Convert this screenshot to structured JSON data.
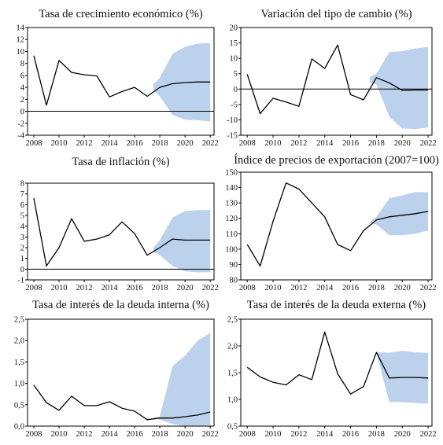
{
  "colors": {
    "line": "#000000",
    "band": "#bcd2ec",
    "frame": "#000000",
    "text": "#111111"
  },
  "chart_data": [
    {
      "type": "line",
      "title": "Tasa de crecimiento económico (%)",
      "xlabel": "",
      "ylabel": "",
      "xlim": [
        2007.5,
        2022.3
      ],
      "ylim": [
        -4,
        14
      ],
      "xticks": [
        "2008",
        "2010",
        "2012",
        "2014",
        "2016",
        "2018",
        "2020",
        "2022"
      ],
      "yticks": [
        "-4",
        "-2",
        "0",
        "2",
        "4",
        "6",
        "8",
        "10",
        "12",
        "14"
      ],
      "zero_line": 0,
      "series": [
        {
          "x": [
            2008,
            2009,
            2010,
            2011,
            2012,
            2013,
            2014,
            2015,
            2016,
            2017,
            2018,
            2019,
            2020,
            2021,
            2022
          ],
          "y": [
            9.3,
            1.0,
            8.5,
            6.5,
            6.1,
            5.9,
            2.4,
            3.3,
            4.0,
            2.5,
            4.0,
            4.6,
            4.8,
            4.9,
            4.9
          ]
        }
      ],
      "band": {
        "x": [
          2017.5,
          2018,
          2019,
          2020,
          2021,
          2022
        ],
        "lower": [
          3.5,
          2.5,
          -0.6,
          -1.4,
          -1.5,
          -1.7
        ],
        "upper": [
          4.5,
          5.6,
          9.6,
          10.8,
          11.3,
          11.4
        ]
      }
    },
    {
      "type": "line",
      "title": "Variación del tipo de cambio (%)",
      "xlabel": "",
      "ylabel": "",
      "xlim": [
        2007.5,
        2022.3
      ],
      "ylim": [
        -15,
        20
      ],
      "xticks": [
        "2008",
        "2010",
        "2012",
        "2014",
        "2016",
        "2018",
        "2020",
        "2022"
      ],
      "yticks": [
        "-15",
        "-10",
        "-5",
        "0",
        "5",
        "10",
        "15",
        "20"
      ],
      "zero_line": 0,
      "series": [
        {
          "x": [
            2008,
            2009,
            2010,
            2011,
            2012,
            2013,
            2014,
            2015,
            2016,
            2017,
            2018,
            2019,
            2020,
            2021,
            2022
          ],
          "y": [
            4.8,
            -8.0,
            -3.0,
            -4.2,
            -5.6,
            9.8,
            6.7,
            14.3,
            -1.8,
            -3.5,
            3.7,
            2.0,
            -0.4,
            -0.3,
            -0.3
          ]
        }
      ],
      "band": {
        "x": [
          2017.5,
          2018,
          2019,
          2020,
          2021,
          2022
        ],
        "lower": [
          2.0,
          1.5,
          -9.0,
          -12.8,
          -13.0,
          -12.5
        ],
        "upper": [
          4.0,
          5.0,
          12.0,
          12.3,
          13.2,
          13.7
        ]
      }
    },
    {
      "type": "line",
      "title": "Tasa de inflación (%)",
      "xlabel": "",
      "ylabel": "",
      "xlim": [
        2007.5,
        2022.3
      ],
      "ylim": [
        -1,
        8
      ],
      "xticks": [
        "2008",
        "2010",
        "2012",
        "2014",
        "2016",
        "2018",
        "2020",
        "2022"
      ],
      "yticks": [
        "-1",
        "0",
        "1",
        "2",
        "3",
        "4",
        "5",
        "6",
        "7",
        "8"
      ],
      "zero_line": 0,
      "series": [
        {
          "x": [
            2008,
            2009,
            2010,
            2011,
            2012,
            2013,
            2014,
            2015,
            2016,
            2017,
            2018,
            2019,
            2020,
            2021,
            2022
          ],
          "y": [
            6.6,
            0.3,
            2.0,
            4.7,
            2.6,
            2.8,
            3.2,
            4.4,
            3.3,
            1.3,
            2.0,
            2.8,
            2.7,
            2.7,
            2.7
          ]
        }
      ],
      "band": {
        "x": [
          2017.5,
          2018,
          2019,
          2020,
          2021,
          2022
        ],
        "lower": [
          1.6,
          1.3,
          0.3,
          -0.2,
          -0.3,
          -0.3
        ],
        "upper": [
          2.0,
          2.7,
          4.8,
          5.4,
          5.5,
          5.5
        ]
      }
    },
    {
      "type": "line",
      "title": "Índice de precios de exportación (2007=100)",
      "xlabel": "",
      "ylabel": "",
      "xlim": [
        2007.5,
        2022.3
      ],
      "ylim": [
        80,
        150
      ],
      "xticks": [
        "2008",
        "2010",
        "2012",
        "2014",
        "2016",
        "2018",
        "2020",
        "2022"
      ],
      "yticks": [
        "80",
        "90",
        "100",
        "110",
        "120",
        "130",
        "140",
        "150"
      ],
      "zero_line": null,
      "series": [
        {
          "x": [
            2008,
            2009,
            2010,
            2011,
            2012,
            2013,
            2014,
            2015,
            2016,
            2017,
            2018,
            2019,
            2020,
            2021,
            2022
          ],
          "y": [
            103,
            89,
            118,
            143,
            139,
            130,
            121,
            103,
            99,
            112,
            119,
            121,
            122,
            123,
            124.5
          ]
        }
      ],
      "band": {
        "x": [
          2017.5,
          2018,
          2019,
          2020,
          2021,
          2022
        ],
        "lower": [
          117,
          116,
          109,
          109,
          110,
          112
        ],
        "upper": [
          118,
          121,
          133,
          135,
          137,
          137
        ]
      }
    },
    {
      "type": "line",
      "title": "Tasa de interés de la deuda interna (%)",
      "xlabel": "",
      "ylabel": "",
      "xlim": [
        2007.5,
        2022.3
      ],
      "ylim": [
        0,
        2.5
      ],
      "xticks": [
        "2008",
        "2010",
        "2012",
        "2014",
        "2016",
        "2018",
        "2020",
        "2022"
      ],
      "yticks": [
        "0,0",
        "0,5",
        "1,0",
        "1,5",
        "2,0",
        "2,5"
      ],
      "zero_line": null,
      "series": [
        {
          "x": [
            2008,
            2009,
            2010,
            2011,
            2012,
            2013,
            2014,
            2015,
            2016,
            2017,
            2018,
            2019,
            2020,
            2021,
            2022
          ],
          "y": [
            0.96,
            0.55,
            0.37,
            0.7,
            0.48,
            0.48,
            0.57,
            0.42,
            0.35,
            0.15,
            0.19,
            0.19,
            0.22,
            0.26,
            0.33
          ]
        }
      ],
      "band": {
        "x": [
          2017.5,
          2018,
          2019,
          2020,
          2021,
          2022
        ],
        "lower": [
          0.18,
          0.15,
          0.05,
          0.0,
          0.0,
          0.0
        ],
        "upper": [
          0.2,
          0.22,
          1.4,
          1.65,
          2.0,
          2.18
        ]
      }
    },
    {
      "type": "line",
      "title": "Tasa de interés de la deuda externa (%)",
      "xlabel": "",
      "ylabel": "",
      "xlim": [
        2007.5,
        2022.3
      ],
      "ylim": [
        0.5,
        2.5
      ],
      "xticks": [
        "2008",
        "2010",
        "2012",
        "2014",
        "2016",
        "2018",
        "2020",
        "2022"
      ],
      "yticks": [
        "0,5",
        "1,0",
        "1,5",
        "2,0",
        "2,5"
      ],
      "zero_line": null,
      "series": [
        {
          "x": [
            2008,
            2009,
            2010,
            2011,
            2012,
            2013,
            2014,
            2015,
            2016,
            2017,
            2018,
            2019,
            2020,
            2021,
            2022
          ],
          "y": [
            1.6,
            1.42,
            1.32,
            1.27,
            1.46,
            1.37,
            2.26,
            1.48,
            1.1,
            1.24,
            1.88,
            1.4,
            1.41,
            1.41,
            1.4
          ]
        }
      ],
      "band": {
        "x": [
          2018,
          2018.5,
          2019,
          2020,
          2021,
          2022
        ],
        "lower": [
          1.88,
          1.4,
          0.95,
          0.95,
          0.93,
          0.92
        ],
        "upper": [
          1.88,
          1.88,
          1.87,
          1.91,
          1.88,
          1.87
        ]
      }
    }
  ]
}
